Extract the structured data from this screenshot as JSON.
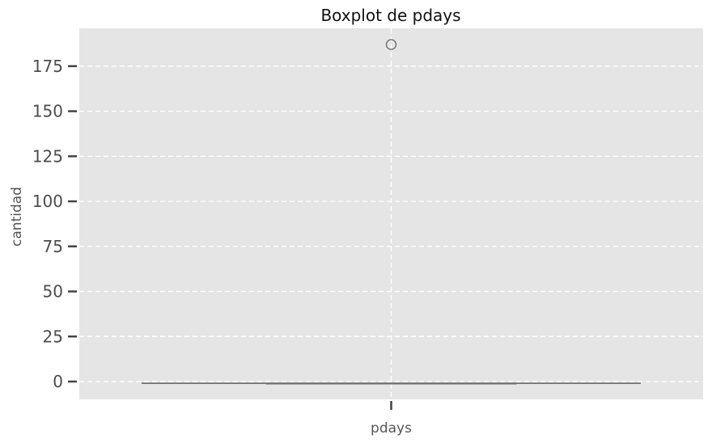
{
  "chart_data": {
    "type": "box",
    "title": "Boxplot de pdays",
    "xlabel": "",
    "ylabel": "cantidad",
    "categories": [
      "pdays"
    ],
    "ylim": [
      -9.5,
      196
    ],
    "yticks": [
      0,
      25,
      50,
      75,
      100,
      125,
      150,
      175
    ],
    "grid": true,
    "boxes": [
      {
        "category": "pdays",
        "whisker_low": -1,
        "q1": -1,
        "median": -1,
        "q3": -1,
        "whisker_high": -1,
        "outliers": [
          187
        ]
      }
    ]
  },
  "colors": {
    "plot_background": "#e5e5e5",
    "grid": "#ffffff",
    "box_line": "#707070",
    "tick_text": "#4d4d4d",
    "outlier_edge": "#707070"
  }
}
